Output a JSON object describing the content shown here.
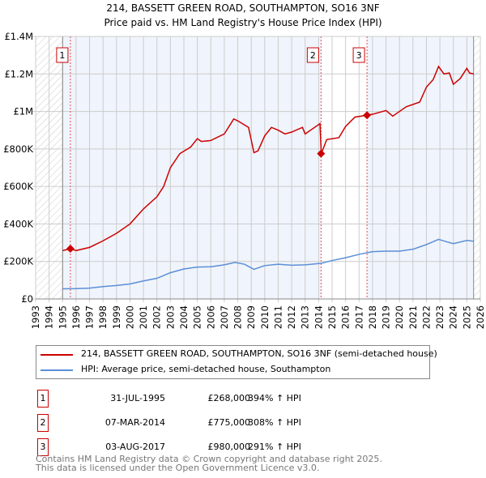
{
  "chart_data": {
    "type": "line",
    "title": "214, BASSETT GREEN ROAD, SOUTHAMPTON, SO16 3NF",
    "subtitle": "Price paid vs. HM Land Registry's House Price Index (HPI)",
    "xlim": [
      1993,
      2026
    ],
    "ylim": [
      0,
      1400000
    ],
    "yticks": [
      {
        "v": 0,
        "label": "£0"
      },
      {
        "v": 200000,
        "label": "£200K"
      },
      {
        "v": 400000,
        "label": "£400K"
      },
      {
        "v": 600000,
        "label": "£600K"
      },
      {
        "v": 800000,
        "label": "£800K"
      },
      {
        "v": 1000000,
        "label": "£1M"
      },
      {
        "v": 1200000,
        "label": "£1.2M"
      },
      {
        "v": 1400000,
        "label": "£1.4M"
      }
    ],
    "xticks": [
      "1993",
      "1994",
      "1995",
      "1996",
      "1997",
      "1998",
      "1999",
      "2000",
      "2001",
      "2002",
      "2003",
      "2004",
      "2005",
      "2006",
      "2007",
      "2008",
      "2009",
      "2010",
      "2011",
      "2012",
      "2013",
      "2014",
      "2015",
      "2016",
      "2017",
      "2018",
      "2019",
      "2020",
      "2021",
      "2022",
      "2023",
      "2024",
      "2025",
      "2026"
    ],
    "data_range": [
      1995,
      2025.5
    ],
    "series": [
      {
        "name": "214, BASSETT GREEN ROAD, SOUTHAMPTON, SO16 3NF (semi-detached house)",
        "color": "#cc0000",
        "x": [
          1995,
          1995.6,
          1996,
          1997,
          1998,
          1999,
          2000,
          2001,
          2002,
          2002.5,
          2003,
          2003.7,
          2004.5,
          2005,
          2005.3,
          2006,
          2007,
          2007.7,
          2008,
          2008.8,
          2009.2,
          2009.5,
          2010,
          2010.5,
          2011,
          2011.5,
          2012,
          2012.8,
          2013,
          2014.1,
          2014.2,
          2014.6,
          2015.5,
          2016,
          2016.7,
          2017.6,
          2018,
          2019,
          2019.5,
          2020,
          2020.5,
          2021.5,
          2022,
          2022.5,
          2022.9,
          2023.3,
          2023.7,
          2024,
          2024.5,
          2025,
          2025.2,
          2025.5
        ],
        "y": [
          258000,
          268000,
          258000,
          275000,
          310000,
          350000,
          400000,
          480000,
          545000,
          600000,
          700000,
          775000,
          810000,
          855000,
          840000,
          845000,
          880000,
          960000,
          950000,
          915000,
          780000,
          790000,
          870000,
          915000,
          900000,
          880000,
          890000,
          915000,
          880000,
          935000,
          775000,
          850000,
          860000,
          920000,
          970000,
          980000,
          985000,
          1005000,
          975000,
          1000000,
          1025000,
          1050000,
          1130000,
          1170000,
          1240000,
          1200000,
          1205000,
          1145000,
          1175000,
          1230000,
          1205000,
          1200000
        ]
      },
      {
        "name": "HPI: Average price, semi-detached house, Southampton",
        "color": "#5b8fd6",
        "x": [
          1995,
          1996,
          1997,
          1998,
          1999,
          2000,
          2001,
          2002,
          2003,
          2004,
          2005,
          2006,
          2007,
          2007.8,
          2008.5,
          2009.2,
          2010,
          2011,
          2012,
          2013,
          2014.2,
          2015,
          2016,
          2017,
          2018,
          2019,
          2020,
          2021,
          2022,
          2022.9,
          2023.5,
          2024,
          2025,
          2025.5
        ],
        "y": [
          54000,
          55000,
          58000,
          66000,
          72000,
          80000,
          96000,
          110000,
          140000,
          160000,
          170000,
          172000,
          182000,
          195000,
          185000,
          158000,
          178000,
          185000,
          180000,
          182000,
          190000,
          205000,
          220000,
          238000,
          252000,
          255000,
          255000,
          265000,
          290000,
          318000,
          305000,
          295000,
          312000,
          308000
        ]
      }
    ],
    "sales": [
      {
        "n": "1",
        "x": 1995.58,
        "date": "31-JUL-1995",
        "price": "£268,000",
        "value": 268000,
        "hpi": "394% ↑ HPI"
      },
      {
        "n": "2",
        "x": 2014.18,
        "date": "07-MAR-2014",
        "price": "£775,000",
        "value": 775000,
        "hpi": "308% ↑ HPI"
      },
      {
        "n": "3",
        "x": 2017.59,
        "date": "03-AUG-2017",
        "price": "£980,000",
        "value": 980000,
        "hpi": "291% ↑ HPI"
      }
    ]
  },
  "footer": [
    "Contains HM Land Registry data © Crown copyright and database right 2025.",
    "This data is licensed under the Open Government Licence v3.0."
  ]
}
